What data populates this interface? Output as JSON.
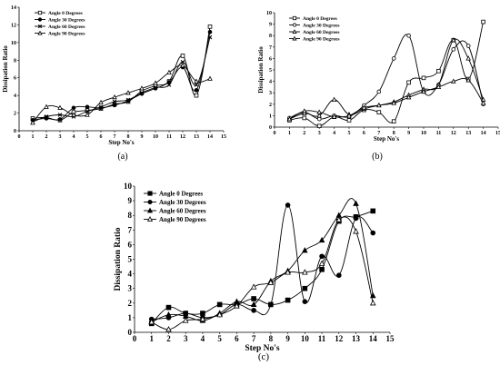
{
  "figure": {
    "panels": [
      "(a)",
      "(b)",
      "(c)"
    ]
  },
  "chart_data": [
    {
      "id": "a",
      "type": "line",
      "panel_label": "(a)",
      "title": "",
      "xlabel": "Step No's",
      "ylabel": "Dissipation Ratio",
      "xlim": [
        0,
        15
      ],
      "ylim": [
        0,
        14
      ],
      "xticks": [
        0,
        1,
        2,
        3,
        4,
        5,
        6,
        7,
        8,
        9,
        10,
        11,
        12,
        13,
        14,
        15
      ],
      "yticks": [
        0,
        2,
        4,
        6,
        8,
        10,
        12,
        14
      ],
      "grid": false,
      "legend_position": "top-left",
      "series": [
        {
          "name": "Angle 0 Degrees",
          "marker": "square-open",
          "x": [
            1,
            2,
            3,
            4,
            5,
            6,
            7,
            8,
            9,
            10,
            11,
            12,
            13,
            14
          ],
          "y": [
            1.4,
            1.5,
            1.2,
            2.1,
            2.3,
            2.5,
            3.0,
            3.3,
            4.5,
            5.1,
            5.6,
            8.5,
            4.0,
            11.8
          ]
        },
        {
          "name": "Angle 30 Degrees",
          "marker": "circle-filled",
          "x": [
            1,
            2,
            3,
            4,
            5,
            6,
            7,
            8,
            9,
            10,
            11,
            12,
            13,
            14
          ],
          "y": [
            1.2,
            1.4,
            1.3,
            2.6,
            2.7,
            2.6,
            2.9,
            3.4,
            4.2,
            4.8,
            5.5,
            7.2,
            4.6,
            11.2
          ]
        },
        {
          "name": "Angle 60 Degrees",
          "marker": "x",
          "x": [
            1,
            2,
            3,
            4,
            5,
            6,
            7,
            8,
            9,
            10,
            11,
            12,
            13,
            14
          ],
          "y": [
            1.0,
            1.6,
            1.8,
            1.6,
            2.2,
            2.7,
            3.3,
            3.5,
            4.3,
            4.9,
            5.2,
            7.8,
            5.2,
            10.6
          ]
        },
        {
          "name": "Angle 90 Degrees",
          "marker": "triangle-open",
          "x": [
            1,
            2,
            3,
            4,
            5,
            6,
            7,
            8,
            9,
            10,
            11,
            12,
            13,
            14
          ],
          "y": [
            0.9,
            2.7,
            2.6,
            1.8,
            1.8,
            3.2,
            3.8,
            4.3,
            4.8,
            5.4,
            6.6,
            7.4,
            5.6,
            5.9
          ]
        }
      ]
    },
    {
      "id": "b",
      "type": "line",
      "panel_label": "(b)",
      "title": "",
      "xlabel": "Step No's",
      "ylabel": "Dissipation Ratio",
      "xlim": [
        0,
        15
      ],
      "ylim": [
        0,
        10
      ],
      "xticks": [
        0,
        1,
        2,
        3,
        4,
        5,
        6,
        7,
        8,
        9,
        10,
        11,
        12,
        13,
        14,
        15
      ],
      "yticks": [
        0,
        1,
        2,
        3,
        4,
        5,
        6,
        7,
        8,
        9,
        10
      ],
      "grid": false,
      "legend_position": "top-left",
      "series": [
        {
          "name": "Angle 0 Degrees",
          "marker": "square-open",
          "x": [
            1,
            2,
            3,
            4,
            5,
            6,
            7,
            8,
            9,
            10,
            11,
            12,
            13,
            14
          ],
          "y": [
            0.6,
            0.8,
            0.1,
            0.9,
            0.6,
            1.5,
            1.3,
            0.5,
            3.9,
            4.3,
            4.9,
            7.6,
            4.2,
            9.2
          ]
        },
        {
          "name": "Angle 30 Degrees",
          "marker": "circle-open",
          "x": [
            1,
            2,
            3,
            4,
            5,
            6,
            7,
            8,
            9,
            10,
            11,
            12,
            13,
            14
          ],
          "y": [
            0.8,
            1.3,
            0.7,
            1.0,
            0.9,
            1.9,
            3.1,
            6.0,
            8.0,
            3.1,
            3.7,
            6.8,
            7.1,
            2.0
          ]
        },
        {
          "name": "Angle 60 Degrees",
          "marker": "triangle-open",
          "x": [
            1,
            2,
            3,
            4,
            5,
            6,
            7,
            8,
            9,
            10,
            11,
            12,
            13,
            14
          ],
          "y": [
            0.7,
            1.2,
            1.0,
            2.4,
            1.1,
            1.6,
            1.9,
            2.2,
            2.8,
            3.3,
            3.7,
            7.6,
            6.0,
            2.4
          ]
        },
        {
          "name": "Angle 90 Degrees",
          "marker": "triangle-open",
          "x": [
            1,
            2,
            3,
            4,
            5,
            6,
            7,
            8,
            9,
            10,
            11,
            12,
            13,
            14
          ],
          "y": [
            0.7,
            1.4,
            1.3,
            0.9,
            1.0,
            1.7,
            1.9,
            2.1,
            2.6,
            3.1,
            3.5,
            4.0,
            4.1,
            2.1
          ]
        }
      ]
    },
    {
      "id": "c",
      "type": "line",
      "panel_label": "(c)",
      "title": "",
      "xlabel": "Step No's",
      "ylabel": "Dissipation Ratio",
      "xlim": [
        0,
        15
      ],
      "ylim": [
        0,
        10
      ],
      "xticks": [
        0,
        1,
        2,
        3,
        4,
        5,
        6,
        7,
        8,
        9,
        10,
        11,
        12,
        13,
        14,
        15
      ],
      "yticks": [
        0,
        1,
        2,
        3,
        4,
        5,
        6,
        7,
        8,
        9,
        10
      ],
      "grid": false,
      "legend_position": "top-left",
      "series": [
        {
          "name": "Angle 0  Degrees",
          "marker": "square-filled",
          "x": [
            1,
            2,
            3,
            4,
            5,
            6,
            7,
            8,
            9,
            10,
            11,
            12,
            13,
            14
          ],
          "y": [
            0.6,
            1.7,
            1.3,
            1.3,
            1.9,
            1.9,
            2.3,
            1.9,
            2.2,
            3.0,
            4.3,
            7.6,
            7.9,
            8.3
          ]
        },
        {
          "name": "Angle 30  Degrees",
          "marker": "circle-filled",
          "x": [
            1,
            2,
            3,
            4,
            5,
            6,
            7,
            8,
            9,
            10,
            11,
            12,
            13,
            14
          ],
          "y": [
            0.9,
            1.0,
            1.3,
            1.0,
            1.2,
            1.9,
            1.5,
            1.9,
            8.7,
            2.1,
            5.2,
            3.9,
            7.8,
            6.8
          ]
        },
        {
          "name": "Angle 60 Degrees",
          "marker": "triangle-filled",
          "x": [
            1,
            2,
            3,
            4,
            5,
            6,
            7,
            8,
            9,
            10,
            11,
            12,
            13,
            14
          ],
          "y": [
            0.7,
            1.2,
            1.1,
            0.8,
            1.3,
            2.1,
            1.9,
            3.5,
            4.2,
            5.6,
            6.3,
            8.0,
            8.8,
            2.5
          ]
        },
        {
          "name": "Angle 90  Degrees",
          "marker": "triangle-open",
          "x": [
            1,
            2,
            3,
            4,
            5,
            6,
            7,
            8,
            9,
            10,
            11,
            12,
            13,
            14
          ],
          "y": [
            0.7,
            0.2,
            0.8,
            0.9,
            1.2,
            1.8,
            3.1,
            3.4,
            4.1,
            4.1,
            4.7,
            7.7,
            6.9,
            2.0
          ]
        }
      ]
    }
  ]
}
